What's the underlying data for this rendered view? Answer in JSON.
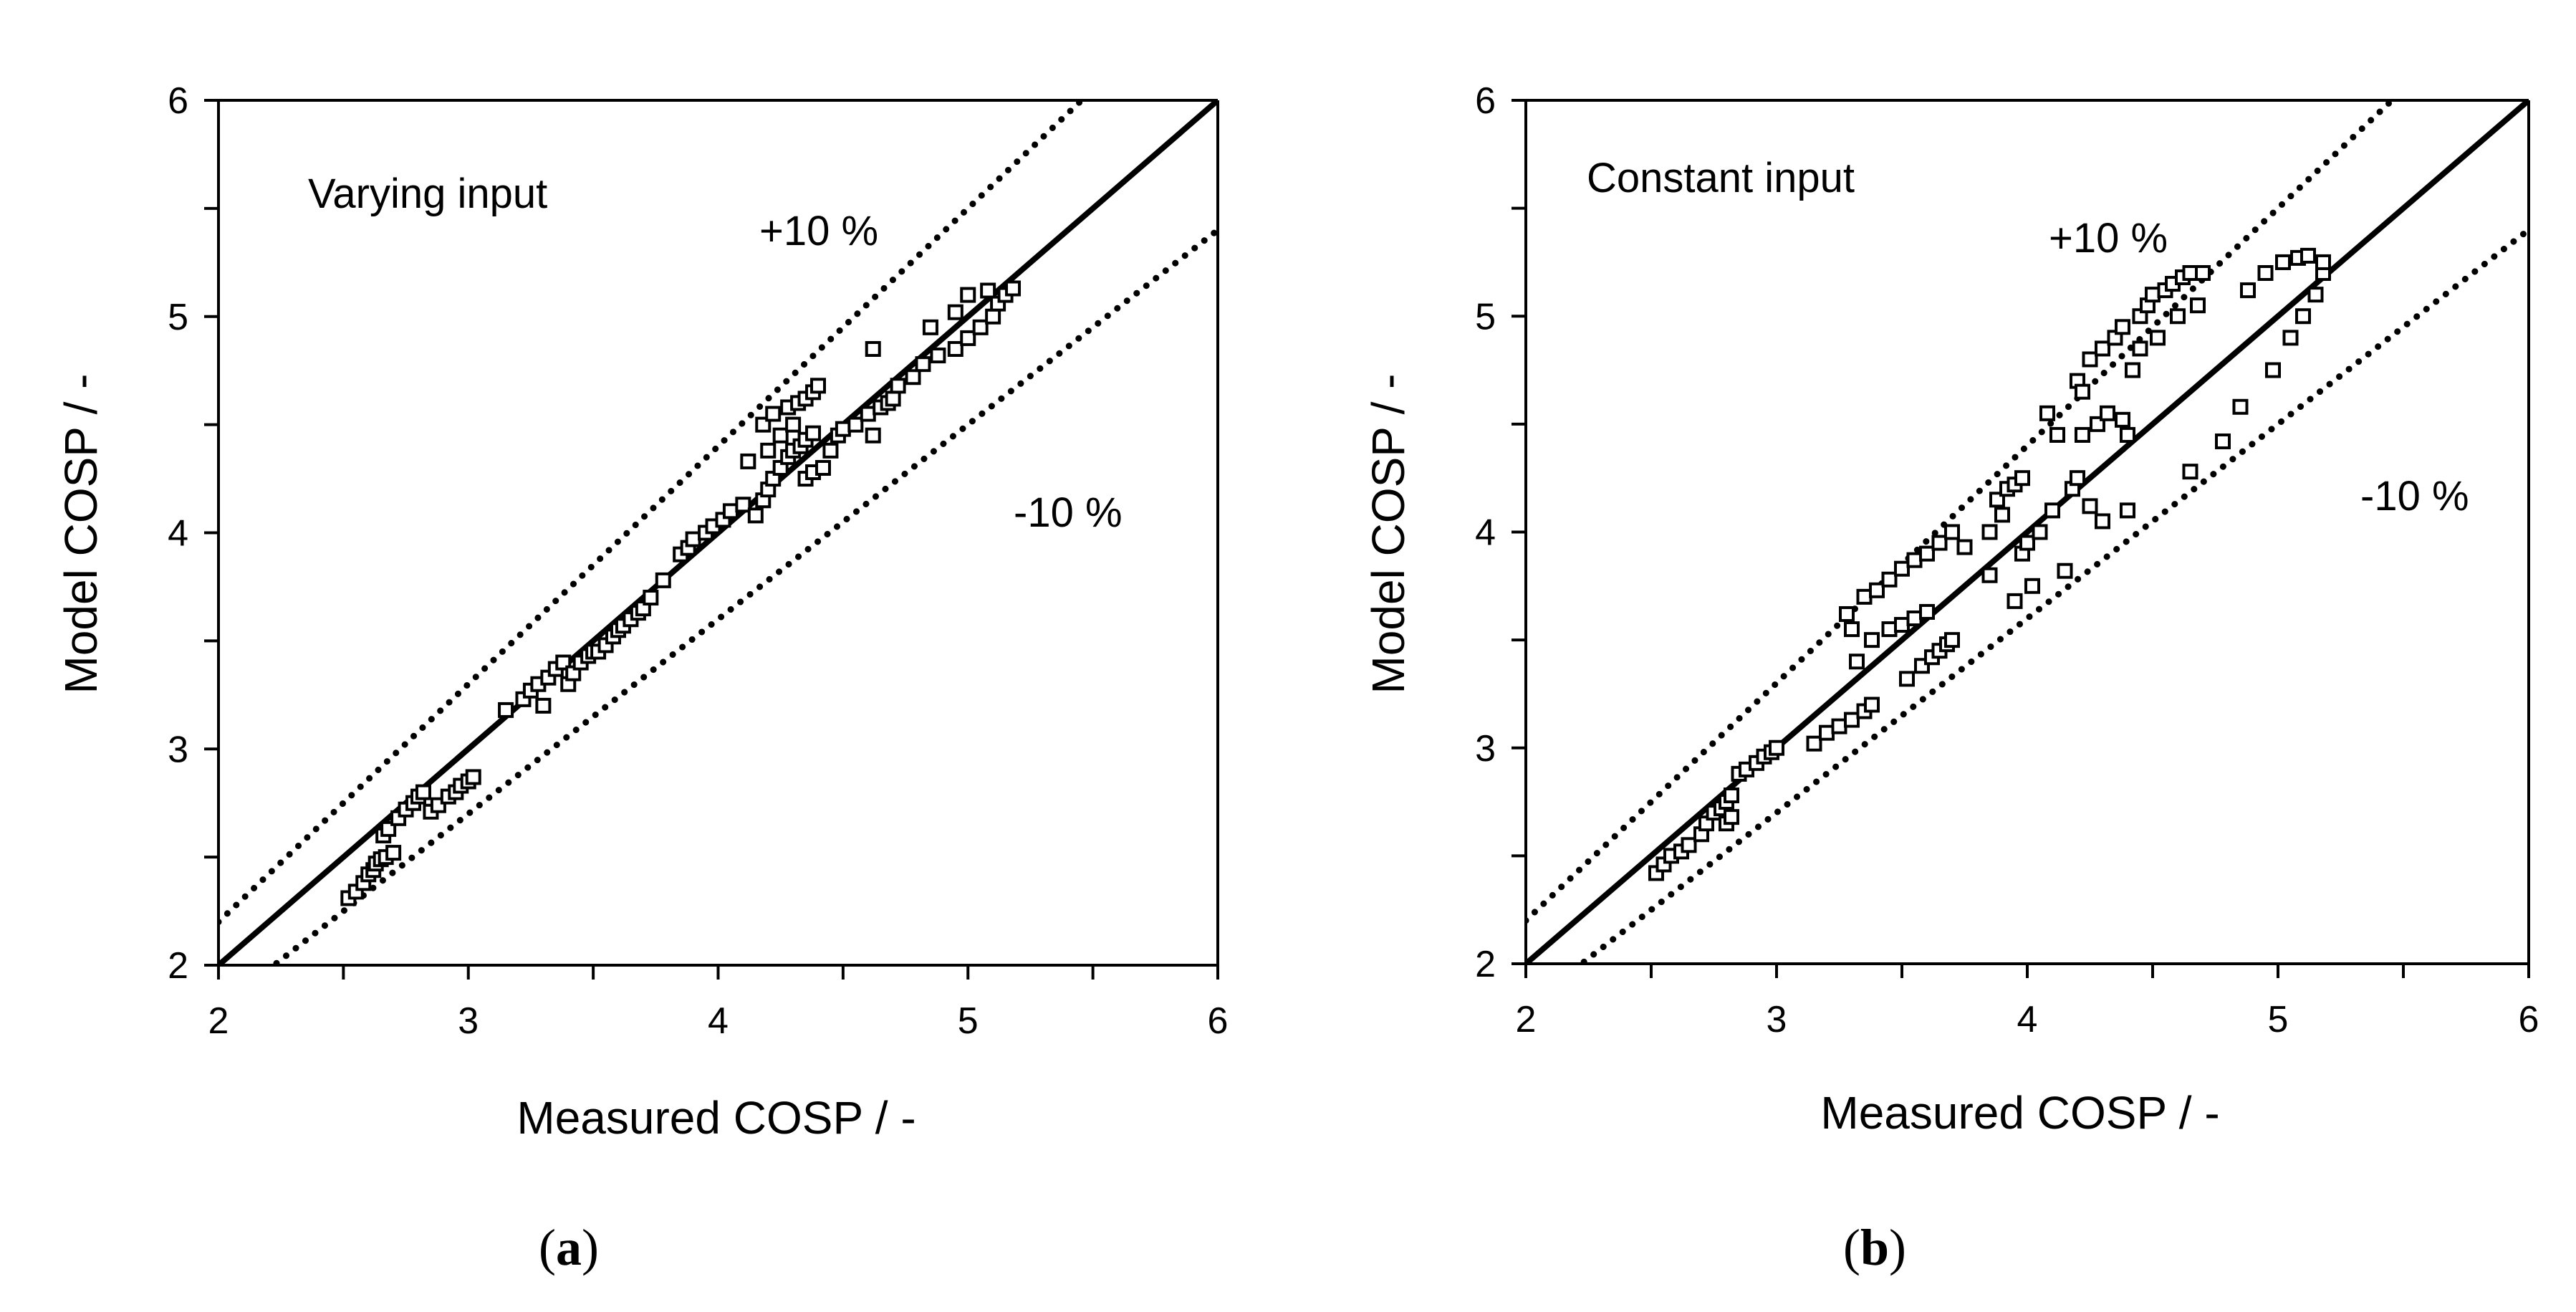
{
  "chart_data": [
    {
      "type": "scatter",
      "panel_label": "a",
      "annotation": "Varying input",
      "xlabel": "Measured COSP / -",
      "ylabel": "Model COSP / -",
      "xlim": [
        2,
        6
      ],
      "ylim": [
        2,
        6
      ],
      "xticks": [
        "2",
        "3",
        "4",
        "5",
        "6"
      ],
      "yticks": [
        "2",
        "3",
        "4",
        "5",
        "6"
      ],
      "ref_lines": [
        {
          "name": "parity",
          "label": "",
          "factor": 1.0,
          "style": "solid"
        },
        {
          "name": "plus-10",
          "label": "+10 %",
          "factor": 1.1,
          "style": "dotted"
        },
        {
          "name": "minus-10",
          "label": "-10 %",
          "factor": 0.9,
          "style": "dotted"
        }
      ],
      "series": [
        {
          "name": "data",
          "marker": "square-open",
          "points": [
            [
              2.52,
              2.31
            ],
            [
              2.55,
              2.34
            ],
            [
              2.58,
              2.38
            ],
            [
              2.6,
              2.42
            ],
            [
              2.62,
              2.44
            ],
            [
              2.63,
              2.47
            ],
            [
              2.65,
              2.49
            ],
            [
              2.67,
              2.5
            ],
            [
              2.7,
              2.52
            ],
            [
              2.66,
              2.6
            ],
            [
              2.68,
              2.63
            ],
            [
              2.72,
              2.68
            ],
            [
              2.75,
              2.72
            ],
            [
              2.78,
              2.75
            ],
            [
              2.8,
              2.78
            ],
            [
              2.82,
              2.8
            ],
            [
              2.85,
              2.71
            ],
            [
              2.88,
              2.74
            ],
            [
              2.92,
              2.78
            ],
            [
              2.95,
              2.8
            ],
            [
              2.97,
              2.83
            ],
            [
              3.0,
              2.85
            ],
            [
              3.02,
              2.87
            ],
            [
              3.15,
              3.18
            ],
            [
              3.22,
              3.23
            ],
            [
              3.25,
              3.27
            ],
            [
              3.28,
              3.3
            ],
            [
              3.3,
              3.2
            ],
            [
              3.32,
              3.33
            ],
            [
              3.35,
              3.37
            ],
            [
              3.38,
              3.4
            ],
            [
              3.4,
              3.3
            ],
            [
              3.42,
              3.35
            ],
            [
              3.45,
              3.4
            ],
            [
              3.48,
              3.43
            ],
            [
              3.5,
              3.45
            ],
            [
              3.52,
              3.45
            ],
            [
              3.55,
              3.48
            ],
            [
              3.58,
              3.52
            ],
            [
              3.6,
              3.55
            ],
            [
              3.62,
              3.57
            ],
            [
              3.65,
              3.6
            ],
            [
              3.68,
              3.63
            ],
            [
              3.7,
              3.65
            ],
            [
              3.73,
              3.7
            ],
            [
              3.78,
              3.78
            ],
            [
              3.85,
              3.9
            ],
            [
              3.88,
              3.93
            ],
            [
              3.9,
              3.97
            ],
            [
              3.95,
              4.0
            ],
            [
              3.98,
              4.03
            ],
            [
              4.02,
              4.06
            ],
            [
              4.05,
              4.1
            ],
            [
              4.1,
              4.13
            ],
            [
              4.12,
              4.33
            ],
            [
              4.15,
              4.08
            ],
            [
              4.18,
              4.15
            ],
            [
              4.2,
              4.2
            ],
            [
              4.22,
              4.25
            ],
            [
              4.25,
              4.3
            ],
            [
              4.28,
              4.35
            ],
            [
              4.3,
              4.38
            ],
            [
              4.33,
              4.4
            ],
            [
              4.35,
              4.43
            ],
            [
              4.38,
              4.46
            ],
            [
              4.18,
              4.5
            ],
            [
              4.2,
              4.38
            ],
            [
              4.22,
              4.55
            ],
            [
              4.25,
              4.45
            ],
            [
              4.28,
              4.58
            ],
            [
              4.3,
              4.5
            ],
            [
              4.32,
              4.6
            ],
            [
              4.35,
              4.62
            ],
            [
              4.38,
              4.65
            ],
            [
              4.4,
              4.68
            ],
            [
              4.35,
              4.25
            ],
            [
              4.38,
              4.28
            ],
            [
              4.42,
              4.3
            ],
            [
              4.45,
              4.38
            ],
            [
              4.48,
              4.45
            ],
            [
              4.5,
              4.48
            ],
            [
              4.55,
              4.5
            ],
            [
              4.6,
              4.55
            ],
            [
              4.62,
              4.45
            ],
            [
              4.65,
              4.58
            ],
            [
              4.68,
              4.6
            ],
            [
              4.7,
              4.62
            ],
            [
              4.62,
              4.85
            ],
            [
              4.72,
              4.68
            ],
            [
              4.78,
              4.72
            ],
            [
              4.82,
              4.78
            ],
            [
              4.85,
              4.95
            ],
            [
              4.88,
              4.82
            ],
            [
              4.95,
              5.02
            ],
            [
              4.95,
              4.85
            ],
            [
              5.0,
              4.9
            ],
            [
              5.0,
              5.1
            ],
            [
              5.05,
              4.95
            ],
            [
              5.08,
              5.12
            ],
            [
              5.1,
              5.0
            ],
            [
              5.12,
              5.06
            ],
            [
              5.15,
              5.1
            ],
            [
              5.18,
              5.13
            ]
          ]
        }
      ]
    },
    {
      "type": "scatter",
      "panel_label": "b",
      "annotation": "Constant input",
      "xlabel": "Measured COSP / -",
      "ylabel": "Model COSP / -",
      "xlim": [
        2,
        6
      ],
      "ylim": [
        2,
        6
      ],
      "xticks": [
        "2",
        "3",
        "4",
        "5",
        "6"
      ],
      "yticks": [
        "2",
        "3",
        "4",
        "5",
        "6"
      ],
      "ref_lines": [
        {
          "name": "parity",
          "label": "",
          "factor": 1.0,
          "style": "solid"
        },
        {
          "name": "plus-10",
          "label": "+10 %",
          "factor": 1.1,
          "style": "dotted"
        },
        {
          "name": "minus-10",
          "label": "-10 %",
          "factor": 0.9,
          "style": "dotted"
        }
      ],
      "series": [
        {
          "name": "data",
          "marker": "square-open",
          "points": [
            [
              2.52,
              2.42
            ],
            [
              2.55,
              2.46
            ],
            [
              2.58,
              2.5
            ],
            [
              2.62,
              2.52
            ],
            [
              2.65,
              2.55
            ],
            [
              2.7,
              2.6
            ],
            [
              2.72,
              2.65
            ],
            [
              2.75,
              2.7
            ],
            [
              2.78,
              2.72
            ],
            [
              2.8,
              2.75
            ],
            [
              2.82,
              2.78
            ],
            [
              2.8,
              2.65
            ],
            [
              2.82,
              2.68
            ],
            [
              2.85,
              2.88
            ],
            [
              2.88,
              2.9
            ],
            [
              2.92,
              2.93
            ],
            [
              2.95,
              2.96
            ],
            [
              2.98,
              2.98
            ],
            [
              3.0,
              3.0
            ],
            [
              3.15,
              3.02
            ],
            [
              3.2,
              3.07
            ],
            [
              3.25,
              3.1
            ],
            [
              3.3,
              3.13
            ],
            [
              3.35,
              3.17
            ],
            [
              3.38,
              3.2
            ],
            [
              3.28,
              3.62
            ],
            [
              3.3,
              3.55
            ],
            [
              3.32,
              3.4
            ],
            [
              3.35,
              3.7
            ],
            [
              3.38,
              3.5
            ],
            [
              3.4,
              3.73
            ],
            [
              3.45,
              3.78
            ],
            [
              3.5,
              3.83
            ],
            [
              3.55,
              3.87
            ],
            [
              3.6,
              3.9
            ],
            [
              3.65,
              3.95
            ],
            [
              3.7,
              4.0
            ],
            [
              3.45,
              3.55
            ],
            [
              3.5,
              3.57
            ],
            [
              3.52,
              3.32
            ],
            [
              3.55,
              3.6
            ],
            [
              3.58,
              3.38
            ],
            [
              3.6,
              3.63
            ],
            [
              3.62,
              3.42
            ],
            [
              3.65,
              3.45
            ],
            [
              3.68,
              3.48
            ],
            [
              3.7,
              3.5
            ],
            [
              3.75,
              3.93
            ],
            [
              3.85,
              3.8
            ],
            [
              3.85,
              4.0
            ],
            [
              3.88,
              4.15
            ],
            [
              3.9,
              4.08
            ],
            [
              3.92,
              4.2
            ],
            [
              3.95,
              4.22
            ],
            [
              3.98,
              4.25
            ],
            [
              3.95,
              3.68
            ],
            [
              3.98,
              3.9
            ],
            [
              4.0,
              3.95
            ],
            [
              4.02,
              3.75
            ],
            [
              4.05,
              4.0
            ],
            [
              4.08,
              4.55
            ],
            [
              4.1,
              4.1
            ],
            [
              4.12,
              4.45
            ],
            [
              4.15,
              3.82
            ],
            [
              4.18,
              4.2
            ],
            [
              4.2,
              4.25
            ],
            [
              4.2,
              4.7
            ],
            [
              4.22,
              4.65
            ],
            [
              4.22,
              4.45
            ],
            [
              4.25,
              4.12
            ],
            [
              4.25,
              4.8
            ],
            [
              4.28,
              4.5
            ],
            [
              4.3,
              4.05
            ],
            [
              4.3,
              4.85
            ],
            [
              4.32,
              4.55
            ],
            [
              4.35,
              4.9
            ],
            [
              4.38,
              4.95
            ],
            [
              4.38,
              4.52
            ],
            [
              4.4,
              4.1
            ],
            [
              4.4,
              4.45
            ],
            [
              4.42,
              4.75
            ],
            [
              4.45,
              5.0
            ],
            [
              4.45,
              4.85
            ],
            [
              4.48,
              5.05
            ],
            [
              4.5,
              5.1
            ],
            [
              4.52,
              4.9
            ],
            [
              4.55,
              5.12
            ],
            [
              4.58,
              5.15
            ],
            [
              4.6,
              5.0
            ],
            [
              4.62,
              5.18
            ],
            [
              4.65,
              5.2
            ],
            [
              4.65,
              4.28
            ],
            [
              4.68,
              5.05
            ],
            [
              4.7,
              5.2
            ],
            [
              4.78,
              4.42
            ],
            [
              4.85,
              4.58
            ],
            [
              4.88,
              5.12
            ],
            [
              4.95,
              5.2
            ],
            [
              4.98,
              4.75
            ],
            [
              5.02,
              5.25
            ],
            [
              5.05,
              4.9
            ],
            [
              5.08,
              5.27
            ],
            [
              5.1,
              5.0
            ],
            [
              5.12,
              5.28
            ],
            [
              5.15,
              5.1
            ],
            [
              5.18,
              5.2
            ],
            [
              5.18,
              5.25
            ]
          ]
        }
      ]
    }
  ]
}
